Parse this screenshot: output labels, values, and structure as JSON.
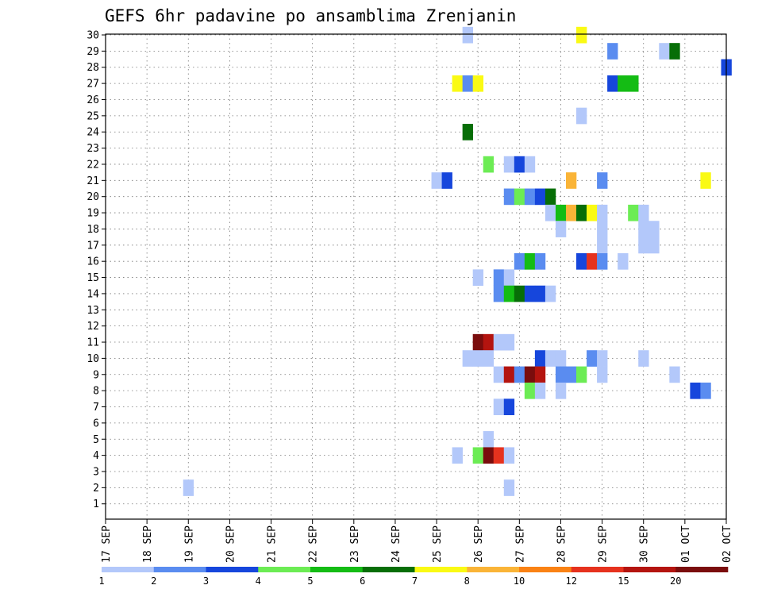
{
  "chart_data": {
    "type": "heatmap",
    "title": "GEFS 6hr padavine po ansamblima Zrenjanin",
    "xlabel": "",
    "ylabel": "",
    "x_tick_labels": [
      "17 SEP",
      "18 SEP",
      "19 SEP",
      "20 SEP",
      "21 SEP",
      "22 SEP",
      "23 SEP",
      "24 SEP",
      "25 SEP",
      "26 SEP",
      "27 SEP",
      "28 SEP",
      "29 SEP",
      "30 SEP",
      "01 OCT",
      "02 OCT"
    ],
    "y_tick_labels": [
      "1",
      "2",
      "3",
      "4",
      "5",
      "6",
      "7",
      "8",
      "9",
      "10",
      "11",
      "12",
      "13",
      "14",
      "15",
      "16",
      "17",
      "18",
      "19",
      "20",
      "21",
      "22",
      "23",
      "24",
      "25",
      "26",
      "27",
      "28",
      "29",
      "30"
    ],
    "time_step_hours": 6,
    "x_unit": "days since 17 SEP",
    "ylim": [
      1,
      30
    ],
    "grid": true,
    "colorbar": {
      "tick_labels": [
        "1",
        "2",
        "3",
        "4",
        "5",
        "6",
        "7",
        "8",
        "10",
        "12",
        "15",
        "20"
      ],
      "colors": [
        "#b3c8fa",
        "#5a8cf0",
        "#1646dc",
        "#6cec54",
        "#14bc14",
        "#076e07",
        "#fafa14",
        "#fab437",
        "#fa8214",
        "#e6321e",
        "#b4140f",
        "#7a0d0d"
      ]
    },
    "cells": [
      {
        "m": 30,
        "x": 8.75,
        "c": 0
      },
      {
        "m": 30,
        "x": 11.5,
        "c": 6
      },
      {
        "m": 29,
        "x": 12.25,
        "c": 1
      },
      {
        "m": 29,
        "x": 13.5,
        "c": 0
      },
      {
        "m": 29,
        "x": 13.75,
        "c": 5
      },
      {
        "m": 28,
        "x": 15,
        "c": 2
      },
      {
        "m": 27,
        "x": 8.5,
        "c": 6
      },
      {
        "m": 27,
        "x": 8.75,
        "c": 1
      },
      {
        "m": 27,
        "x": 9,
        "c": 6
      },
      {
        "m": 27,
        "x": 12.25,
        "c": 2
      },
      {
        "m": 27,
        "x": 12.5,
        "c": 4
      },
      {
        "m": 27,
        "x": 12.75,
        "c": 4
      },
      {
        "m": 25,
        "x": 11.5,
        "c": 0
      },
      {
        "m": 24,
        "x": 8.75,
        "c": 5
      },
      {
        "m": 22,
        "x": 9.25,
        "c": 3
      },
      {
        "m": 22,
        "x": 9.75,
        "c": 0
      },
      {
        "m": 22,
        "x": 10,
        "c": 2
      },
      {
        "m": 22,
        "x": 10.25,
        "c": 0
      },
      {
        "m": 21,
        "x": 8,
        "c": 0
      },
      {
        "m": 21,
        "x": 8.25,
        "c": 2
      },
      {
        "m": 21,
        "x": 11.25,
        "c": 7
      },
      {
        "m": 21,
        "x": 12,
        "c": 1
      },
      {
        "m": 21,
        "x": 14.5,
        "c": 6
      },
      {
        "m": 20,
        "x": 9.75,
        "c": 1
      },
      {
        "m": 20,
        "x": 10,
        "c": 3
      },
      {
        "m": 20,
        "x": 10.25,
        "c": 1
      },
      {
        "m": 20,
        "x": 10.5,
        "c": 2
      },
      {
        "m": 20,
        "x": 10.75,
        "c": 5
      },
      {
        "m": 19,
        "x": 10.75,
        "c": 0
      },
      {
        "m": 19,
        "x": 11,
        "c": 4
      },
      {
        "m": 19,
        "x": 11.25,
        "c": 7
      },
      {
        "m": 19,
        "x": 11.5,
        "c": 5
      },
      {
        "m": 19,
        "x": 11.75,
        "c": 6
      },
      {
        "m": 19,
        "x": 12,
        "c": 0
      },
      {
        "m": 19,
        "x": 12.75,
        "c": 3
      },
      {
        "m": 19,
        "x": 13,
        "c": 0
      },
      {
        "m": 18,
        "x": 11,
        "c": 0
      },
      {
        "m": 18,
        "x": 12,
        "c": 0
      },
      {
        "m": 18,
        "x": 13,
        "c": 0
      },
      {
        "m": 18,
        "x": 13.25,
        "c": 0
      },
      {
        "m": 17,
        "x": 12,
        "c": 0
      },
      {
        "m": 17,
        "x": 13,
        "c": 0
      },
      {
        "m": 17,
        "x": 13.25,
        "c": 0
      },
      {
        "m": 16,
        "x": 10,
        "c": 1
      },
      {
        "m": 16,
        "x": 10.25,
        "c": 4
      },
      {
        "m": 16,
        "x": 10.5,
        "c": 1
      },
      {
        "m": 16,
        "x": 11.5,
        "c": 2
      },
      {
        "m": 16,
        "x": 11.75,
        "c": 9
      },
      {
        "m": 16,
        "x": 12,
        "c": 1
      },
      {
        "m": 16,
        "x": 12.5,
        "c": 0
      },
      {
        "m": 15,
        "x": 9,
        "c": 0
      },
      {
        "m": 15,
        "x": 9.5,
        "c": 1
      },
      {
        "m": 15,
        "x": 9.75,
        "c": 0
      },
      {
        "m": 14,
        "x": 9.5,
        "c": 1
      },
      {
        "m": 14,
        "x": 9.75,
        "c": 4
      },
      {
        "m": 14,
        "x": 10,
        "c": 5
      },
      {
        "m": 14,
        "x": 10.25,
        "c": 2
      },
      {
        "m": 14,
        "x": 10.5,
        "c": 2
      },
      {
        "m": 14,
        "x": 10.75,
        "c": 0
      },
      {
        "m": 11,
        "x": 9,
        "c": 11
      },
      {
        "m": 11,
        "x": 9.25,
        "c": 10
      },
      {
        "m": 11,
        "x": 9.5,
        "c": 0
      },
      {
        "m": 11,
        "x": 9.75,
        "c": 0
      },
      {
        "m": 10,
        "x": 8.75,
        "c": 0
      },
      {
        "m": 10,
        "x": 9,
        "c": 0
      },
      {
        "m": 10,
        "x": 9.25,
        "c": 0
      },
      {
        "m": 10,
        "x": 10.5,
        "c": 2
      },
      {
        "m": 10,
        "x": 10.75,
        "c": 0
      },
      {
        "m": 10,
        "x": 11,
        "c": 0
      },
      {
        "m": 10,
        "x": 11.75,
        "c": 1
      },
      {
        "m": 10,
        "x": 12,
        "c": 0
      },
      {
        "m": 10,
        "x": 13,
        "c": 0
      },
      {
        "m": 9,
        "x": 9.5,
        "c": 0
      },
      {
        "m": 9,
        "x": 9.75,
        "c": 10
      },
      {
        "m": 9,
        "x": 10,
        "c": 1
      },
      {
        "m": 9,
        "x": 10.25,
        "c": 11
      },
      {
        "m": 9,
        "x": 10.5,
        "c": 10
      },
      {
        "m": 9,
        "x": 11,
        "c": 1
      },
      {
        "m": 9,
        "x": 11.25,
        "c": 1
      },
      {
        "m": 9,
        "x": 11.5,
        "c": 3
      },
      {
        "m": 9,
        "x": 12,
        "c": 0
      },
      {
        "m": 9,
        "x": 13.75,
        "c": 0
      },
      {
        "m": 8,
        "x": 10.25,
        "c": 3
      },
      {
        "m": 8,
        "x": 10.5,
        "c": 0
      },
      {
        "m": 8,
        "x": 11,
        "c": 0
      },
      {
        "m": 8,
        "x": 14.25,
        "c": 2
      },
      {
        "m": 8,
        "x": 14.5,
        "c": 1
      },
      {
        "m": 7,
        "x": 9.5,
        "c": 0
      },
      {
        "m": 7,
        "x": 9.75,
        "c": 2
      },
      {
        "m": 5,
        "x": 9.25,
        "c": 0
      },
      {
        "m": 4,
        "x": 8.5,
        "c": 0
      },
      {
        "m": 4,
        "x": 9,
        "c": 3
      },
      {
        "m": 4,
        "x": 9.25,
        "c": 11
      },
      {
        "m": 4,
        "x": 9.5,
        "c": 9
      },
      {
        "m": 4,
        "x": 9.75,
        "c": 0
      },
      {
        "m": 2,
        "x": 2,
        "c": 0
      },
      {
        "m": 2,
        "x": 9.75,
        "c": 0
      }
    ]
  }
}
